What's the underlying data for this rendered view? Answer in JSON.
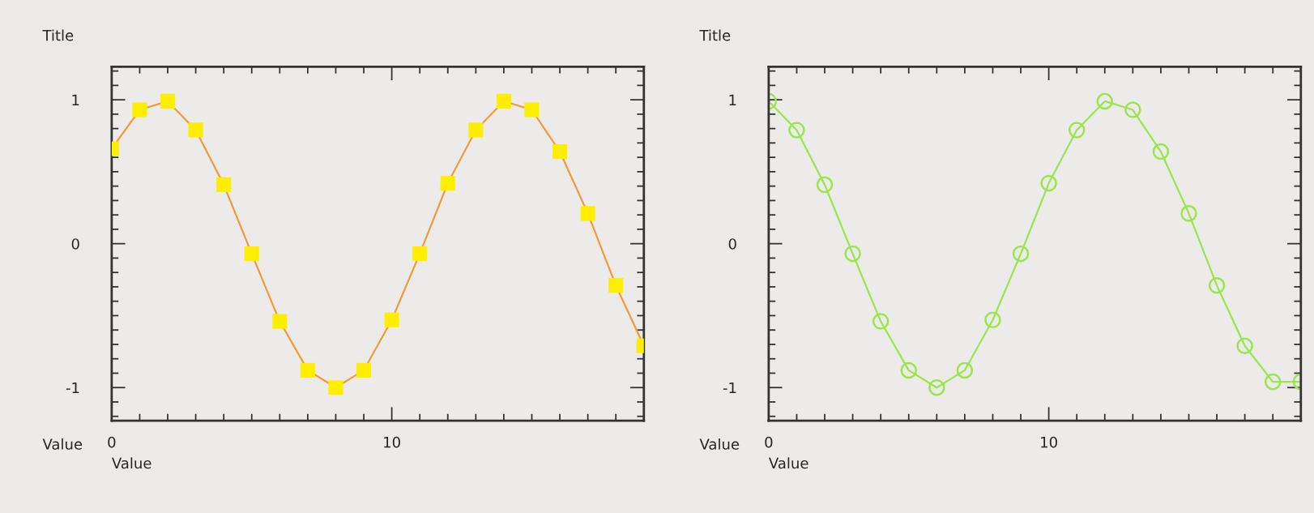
{
  "chart_data": [
    {
      "type": "line",
      "title": "Title",
      "xlabel": "Value",
      "ylabel": "Value",
      "line_style": "solid",
      "grid": false,
      "legend": false,
      "xlim": [
        0,
        19
      ],
      "ylim": [
        -1.23,
        1.23
      ],
      "xticks": [
        0,
        {
          "value": 1,
          "label": null
        },
        {
          "value": 2,
          "label": null
        },
        {
          "value": 3,
          "label": null
        },
        {
          "value": 4,
          "label": null
        },
        {
          "value": 5,
          "label": null
        },
        {
          "value": 6,
          "label": null
        },
        {
          "value": 7,
          "label": null
        },
        {
          "value": 8,
          "label": null
        },
        {
          "value": 9,
          "label": null
        },
        10,
        {
          "value": 11,
          "label": null
        },
        {
          "value": 12,
          "label": null
        },
        {
          "value": 13,
          "label": null
        },
        {
          "value": 14,
          "label": null
        },
        {
          "value": 15,
          "label": null
        },
        {
          "value": 16,
          "label": null
        },
        {
          "value": 17,
          "label": null
        },
        {
          "value": 18,
          "label": null
        },
        {
          "value": 19,
          "label": null
        }
      ],
      "yticks": [
        {
          "value": -1.2,
          "label": null
        },
        {
          "value": -1.1,
          "label": null
        },
        -1,
        {
          "value": -0.9,
          "label": null
        },
        {
          "value": -0.8,
          "label": null
        },
        {
          "value": -0.7,
          "label": null
        },
        {
          "value": -0.6,
          "label": null
        },
        {
          "value": -0.5,
          "label": null
        },
        {
          "value": -0.4,
          "label": null
        },
        {
          "value": -0.3,
          "label": null
        },
        {
          "value": -0.2,
          "label": null
        },
        {
          "value": -0.1,
          "label": null
        },
        0,
        {
          "value": 0.1,
          "label": null
        },
        {
          "value": 0.2,
          "label": null
        },
        {
          "value": 0.3,
          "label": null
        },
        {
          "value": 0.4,
          "label": null
        },
        {
          "value": 0.5,
          "label": null
        },
        {
          "value": 0.6,
          "label": null
        },
        {
          "value": 0.7,
          "label": null
        },
        {
          "value": 0.8,
          "label": null
        },
        {
          "value": 0.9,
          "label": null
        },
        1,
        {
          "value": 1.1,
          "label": null
        },
        {
          "value": 1.2,
          "label": null
        }
      ],
      "x": [
        0,
        1,
        2,
        3,
        4,
        5,
        6,
        7,
        8,
        9,
        10,
        11,
        12,
        13,
        14,
        15,
        16,
        17,
        18,
        19
      ],
      "series": [
        {
          "type": "line",
          "marker": "none",
          "color": "#f39a3a",
          "values": [
            0.66,
            0.93,
            0.99,
            0.79,
            0.41,
            -0.07,
            -0.54,
            -0.88,
            -1.0,
            -0.88,
            -0.53,
            -0.07,
            0.42,
            0.79,
            0.99,
            0.93,
            0.64,
            0.21,
            -0.29,
            -0.71
          ]
        },
        {
          "type": "scatter",
          "marker": "square",
          "color": "#ffee00",
          "values": [
            0.66,
            0.93,
            0.99,
            0.79,
            0.41,
            -0.07,
            -0.54,
            -0.88,
            -1.0,
            -0.88,
            -0.53,
            -0.07,
            0.42,
            0.79,
            0.99,
            0.93,
            0.64,
            0.21,
            -0.29,
            -0.71
          ]
        }
      ]
    },
    {
      "type": "line",
      "title": "Title",
      "xlabel": "Value",
      "ylabel": "Value",
      "marker": "circle",
      "line_style": "solid",
      "grid": false,
      "legend": false,
      "xlim": [
        0,
        19
      ],
      "ylim": [
        -1.23,
        1.23
      ],
      "xticks": [
        0,
        {
          "value": 1,
          "label": null
        },
        {
          "value": 2,
          "label": null
        },
        {
          "value": 3,
          "label": null
        },
        {
          "value": 4,
          "label": null
        },
        {
          "value": 5,
          "label": null
        },
        {
          "value": 6,
          "label": null
        },
        {
          "value": 7,
          "label": null
        },
        {
          "value": 8,
          "label": null
        },
        {
          "value": 9,
          "label": null
        },
        10,
        {
          "value": 11,
          "label": null
        },
        {
          "value": 12,
          "label": null
        },
        {
          "value": 13,
          "label": null
        },
        {
          "value": 14,
          "label": null
        },
        {
          "value": 15,
          "label": null
        },
        {
          "value": 16,
          "label": null
        },
        {
          "value": 17,
          "label": null
        },
        {
          "value": 18,
          "label": null
        },
        {
          "value": 19,
          "label": null
        }
      ],
      "yticks": [
        {
          "value": -1.2,
          "label": null
        },
        {
          "value": -1.1,
          "label": null
        },
        -1,
        {
          "value": -0.9,
          "label": null
        },
        {
          "value": -0.8,
          "label": null
        },
        {
          "value": -0.7,
          "label": null
        },
        {
          "value": -0.6,
          "label": null
        },
        {
          "value": -0.5,
          "label": null
        },
        {
          "value": -0.4,
          "label": null
        },
        {
          "value": -0.3,
          "label": null
        },
        {
          "value": -0.2,
          "label": null
        },
        {
          "value": -0.1,
          "label": null
        },
        0,
        {
          "value": 0.1,
          "label": null
        },
        {
          "value": 0.2,
          "label": null
        },
        {
          "value": 0.3,
          "label": null
        },
        {
          "value": 0.4,
          "label": null
        },
        {
          "value": 0.5,
          "label": null
        },
        {
          "value": 0.6,
          "label": null
        },
        {
          "value": 0.7,
          "label": null
        },
        {
          "value": 0.8,
          "label": null
        },
        {
          "value": 0.9,
          "label": null
        },
        1,
        {
          "value": 1.1,
          "label": null
        },
        {
          "value": 1.2,
          "label": null
        }
      ],
      "x": [
        0,
        1,
        2,
        3,
        4,
        5,
        6,
        7,
        8,
        9,
        10,
        11,
        12,
        13,
        14,
        15,
        16,
        17,
        18,
        19
      ],
      "series": [
        {
          "color": "#99e64d",
          "values": [
            0.99,
            0.79,
            0.41,
            -0.07,
            -0.54,
            -0.88,
            -1.0,
            -0.88,
            -0.53,
            -0.07,
            0.42,
            0.79,
            0.99,
            0.93,
            0.64,
            0.21,
            -0.29,
            -0.71,
            -0.96,
            -0.96
          ]
        }
      ]
    }
  ]
}
